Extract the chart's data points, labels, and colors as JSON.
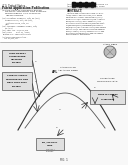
{
  "bg_color": "#f0eeea",
  "page_bg": "#ffffff",
  "barcode_color": "#111111",
  "text_color": "#222222",
  "light_text": "#555555",
  "box_fill": "#d8d8d8",
  "box_edge": "#555555",
  "line_color": "#444444",
  "figsize": [
    1.28,
    1.65
  ],
  "dpi": 100
}
